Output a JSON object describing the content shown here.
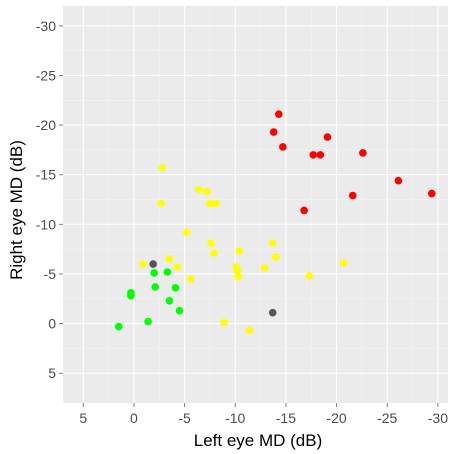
{
  "chart_data": {
    "type": "scatter",
    "title": "",
    "xlabel": "Left eye MD (dB)",
    "ylabel": "Right eye MD (dB)",
    "xlim": [
      7,
      -31
    ],
    "ylim": [
      8,
      -32
    ],
    "x_reversed": true,
    "y_reversed": true,
    "x_ticks": [
      5,
      0,
      -5,
      -10,
      -15,
      -20,
      -25,
      -30
    ],
    "y_ticks": [
      5,
      0,
      -5,
      -10,
      -15,
      -20,
      -25,
      -30
    ],
    "x_tick_labels": [
      "5",
      "0",
      "-5",
      "-10",
      "-15",
      "-20",
      "-25",
      "-30"
    ],
    "y_tick_labels": [
      "5",
      "0",
      "-5",
      "-10",
      "-15",
      "-20",
      "-25",
      "-30"
    ],
    "grid": true,
    "legend": "none",
    "colors": {
      "panel": "#ebebeb",
      "grid_major": "#ffffff",
      "grid_minor": "#f5f5f5",
      "tick_label": "#4d4d4d"
    },
    "series": [
      {
        "color": "#ff0000",
        "points": [
          {
            "x": -14.3,
            "y": -21.1
          },
          {
            "x": -13.8,
            "y": -19.3
          },
          {
            "x": -14.7,
            "y": -17.8
          },
          {
            "x": -19.1,
            "y": -18.8
          },
          {
            "x": -17.7,
            "y": -17.0
          },
          {
            "x": -18.4,
            "y": -17.0
          },
          {
            "x": -22.6,
            "y": -17.2
          },
          {
            "x": -16.8,
            "y": -11.4
          },
          {
            "x": -21.6,
            "y": -12.9
          },
          {
            "x": -26.1,
            "y": -14.4
          },
          {
            "x": -29.4,
            "y": -13.1
          }
        ]
      },
      {
        "color": "#ffff00",
        "points": [
          {
            "x": -2.8,
            "y": -15.7
          },
          {
            "x": -6.4,
            "y": -13.5
          },
          {
            "x": -7.2,
            "y": -13.3
          },
          {
            "x": -2.7,
            "y": -12.1
          },
          {
            "x": -7.5,
            "y": -12.1
          },
          {
            "x": -8.1,
            "y": -12.1
          },
          {
            "x": -5.2,
            "y": -9.2
          },
          {
            "x": -7.6,
            "y": -8.1
          },
          {
            "x": -7.9,
            "y": -7.1
          },
          {
            "x": -10.4,
            "y": -7.3
          },
          {
            "x": -13.7,
            "y": -8.1
          },
          {
            "x": -14.0,
            "y": -6.7
          },
          {
            "x": -0.9,
            "y": -6.0
          },
          {
            "x": -3.5,
            "y": -6.5
          },
          {
            "x": -4.3,
            "y": -5.7
          },
          {
            "x": -10.1,
            "y": -5.7
          },
          {
            "x": -10.2,
            "y": -5.3
          },
          {
            "x": -12.9,
            "y": -5.6
          },
          {
            "x": -20.7,
            "y": -6.1
          },
          {
            "x": -5.6,
            "y": -4.5
          },
          {
            "x": -10.3,
            "y": -4.7
          },
          {
            "x": -17.3,
            "y": -4.8
          },
          {
            "x": -8.9,
            "y": -0.1
          },
          {
            "x": -11.4,
            "y": 0.7
          }
        ]
      },
      {
        "color": "#00ff00",
        "points": [
          {
            "x": -2.0,
            "y": -5.1
          },
          {
            "x": -3.3,
            "y": -5.2
          },
          {
            "x": -2.1,
            "y": -3.7
          },
          {
            "x": -4.1,
            "y": -3.6
          },
          {
            "x": 0.3,
            "y": -3.1
          },
          {
            "x": 0.3,
            "y": -2.8
          },
          {
            "x": -3.5,
            "y": -2.3
          },
          {
            "x": -4.5,
            "y": -1.3
          },
          {
            "x": -1.4,
            "y": -0.2
          },
          {
            "x": 1.5,
            "y": 0.3
          }
        ]
      },
      {
        "color": "#555555",
        "points": [
          {
            "x": -1.9,
            "y": -6.0
          },
          {
            "x": -13.7,
            "y": -1.1
          }
        ]
      }
    ]
  }
}
